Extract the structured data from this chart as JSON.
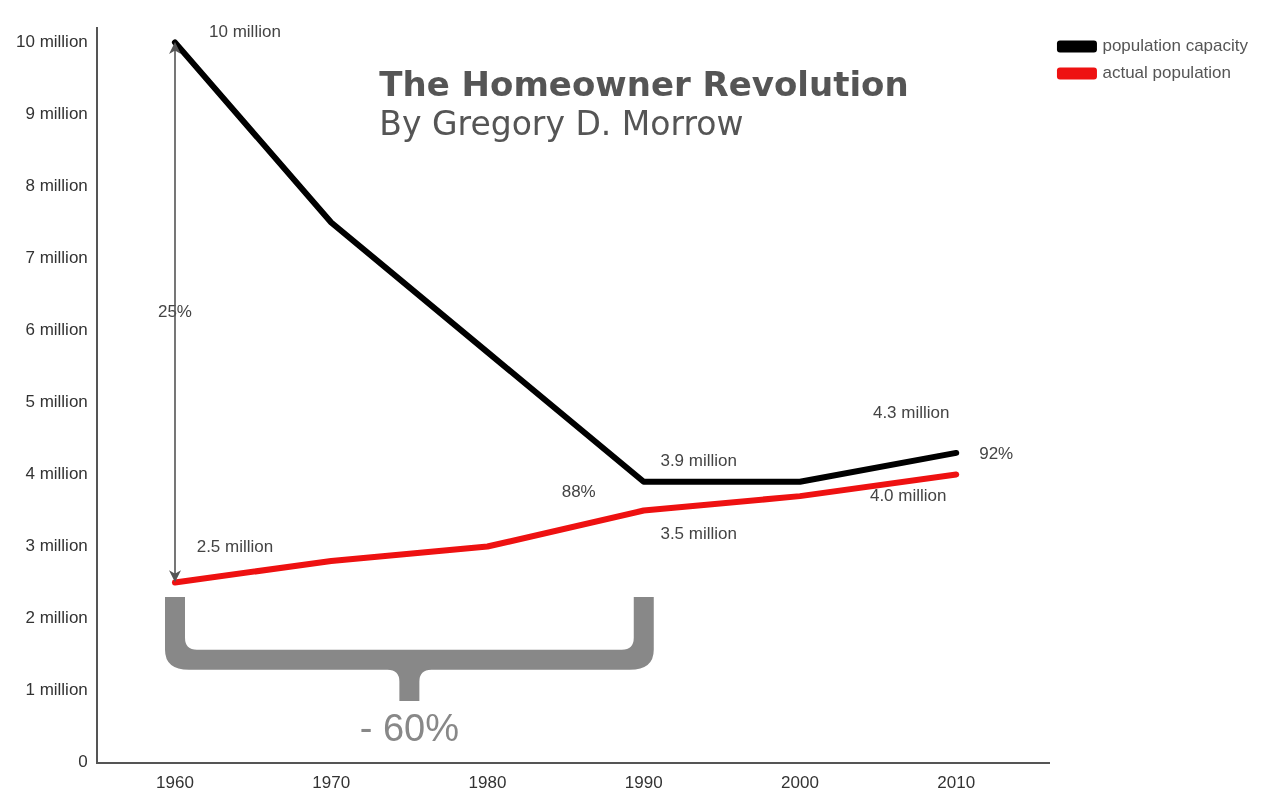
{
  "chart_data": {
    "type": "line",
    "title": "The Homeowner Revolution",
    "subtitle": "By Gregory D. Morrow",
    "x": [
      1960,
      1970,
      1980,
      1990,
      2000,
      2010
    ],
    "series": [
      {
        "name": "population capacity",
        "color": "#000000",
        "values": [
          10,
          7.5,
          5.7,
          3.9,
          3.9,
          4.3
        ]
      },
      {
        "name": "actual population",
        "color": "#ee1111",
        "values": [
          2.5,
          2.8,
          3.0,
          3.5,
          3.7,
          4.0
        ]
      }
    ],
    "xlim": [
      1955,
      2016
    ],
    "xticks": [
      1960,
      1970,
      1980,
      1990,
      2000,
      2010
    ],
    "ylim": [
      0,
      10.2
    ],
    "yticks": [
      0,
      {
        "value": 1,
        "label": "1 million"
      },
      {
        "value": 2,
        "label": "2 million"
      },
      {
        "value": 3,
        "label": "3 million"
      },
      {
        "value": 4,
        "label": "4 million"
      },
      {
        "value": 5,
        "label": "5 million"
      },
      {
        "value": 6,
        "label": "6 million"
      },
      {
        "value": 7,
        "label": "7 million"
      },
      {
        "value": 8,
        "label": "8 million"
      },
      {
        "value": 9,
        "label": "9 million"
      },
      {
        "value": 10,
        "label": "10 million"
      }
    ],
    "grid": false,
    "legend": "top right",
    "marker": "none",
    "line_style": "solid",
    "annotations": [
      {
        "text": "10 million",
        "x": 1960,
        "y": 10
      },
      "25%",
      {
        "text": "2.5 million",
        "x": 1960,
        "y": 2.5
      },
      {
        "text": "3.9 million",
        "x": 1990,
        "y": 3.9
      },
      {
        "text": "88%",
        "x": 1990,
        "y": 3.5
      },
      {
        "text": "3.5 million",
        "x": 1990,
        "y": 3.5
      },
      {
        "text": "4.3 million",
        "x": 2010,
        "y": 4.3
      },
      {
        "text": "92%",
        "x": 2010,
        "y": 4.0
      },
      {
        "text": "4.0 million",
        "x": 2010,
        "y": 4.0
      },
      "- 60%"
    ]
  }
}
